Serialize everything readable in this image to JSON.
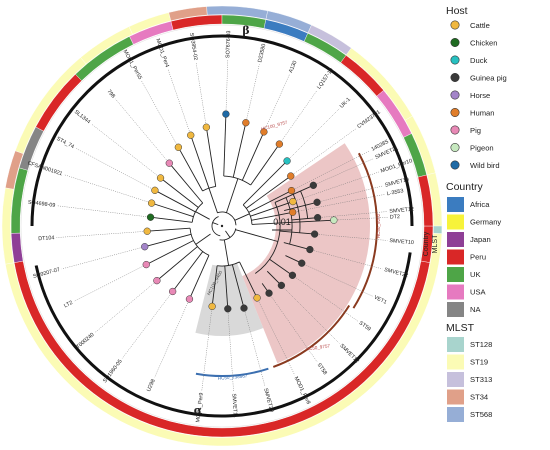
{
  "chart_data": {
    "type": "circular phylogenetic tree",
    "clades": {
      "alpha": "α",
      "beta": "β"
    },
    "scale_bar": "0.01",
    "ring_labels": {
      "country": "Country",
      "mlst": "MLST"
    },
    "legend": {
      "host": {
        "title": "Host",
        "items": [
          {
            "label": "Cattle",
            "color": "#f0b840"
          },
          {
            "label": "Chicken",
            "color": "#1f6b21"
          },
          {
            "label": "Duck",
            "color": "#27c0c0"
          },
          {
            "label": "Guinea pig",
            "color": "#3a3a3a"
          },
          {
            "label": "Horse",
            "color": "#a384c8"
          },
          {
            "label": "Human",
            "color": "#e07d2a"
          },
          {
            "label": "Pig",
            "color": "#e889b6"
          },
          {
            "label": "Pigeon",
            "color": "#c6e8bf"
          },
          {
            "label": "Wild bird",
            "color": "#1f6aa5"
          }
        ]
      },
      "country": {
        "title": "Country",
        "items": [
          {
            "label": "Africa",
            "color": "#3b7cc0"
          },
          {
            "label": "Germany",
            "color": "#f7f33a"
          },
          {
            "label": "Japan",
            "color": "#8f3f96"
          },
          {
            "label": "Peru",
            "color": "#d92727"
          },
          {
            "label": "UK",
            "color": "#4ea547"
          },
          {
            "label": "USA",
            "color": "#e67ac0"
          },
          {
            "label": "NA",
            "color": "#858585"
          }
        ]
      },
      "mlst": {
        "title": "MLST",
        "items": [
          {
            "label": "ST128",
            "color": "#a8d4cd"
          },
          {
            "label": "ST19",
            "color": "#fbfbb5"
          },
          {
            "label": "ST313",
            "color": "#c6c0dc"
          },
          {
            "label": "ST34",
            "color": "#e0a089"
          },
          {
            "label": "ST568",
            "color": "#96aed6"
          }
        ]
      }
    },
    "highlights": [
      {
        "label": "HC100_9757",
        "color": "#b84a4a"
      },
      {
        "label": "HC100_9460",
        "color": "#444444"
      },
      {
        "label": "HC50_9757",
        "color": "#b84a4a"
      },
      {
        "label": "HC50_9202",
        "color": "#b84a4a"
      },
      {
        "label": "HC50_238667",
        "color": "#3b6fb0"
      }
    ],
    "leaves": [
      {
        "label": "SMVET21",
        "host": "Guinea pig",
        "angle": -24,
        "tipr": 100
      },
      {
        "label": "SMVET19",
        "host": "Guinea pig",
        "angle": -14,
        "tipr": 98
      },
      {
        "label": "SMVET12",
        "host": "Guinea pig",
        "angle": -5,
        "tipr": 96
      },
      {
        "label": "SMVET10",
        "host": "Guinea pig",
        "angle": 5,
        "tipr": 93
      },
      {
        "label": "SMVET22",
        "host": "Guinea pig",
        "angle": 15,
        "tipr": 91
      },
      {
        "label": "VET1",
        "host": "Guinea pig",
        "angle": 25,
        "tipr": 88
      },
      {
        "label": "ST59",
        "host": "Guinea pig",
        "angle": 35,
        "tipr": 86
      },
      {
        "label": "SMVET12",
        "host": "Guinea pig",
        "angle": 45,
        "tipr": 84
      },
      {
        "label": "ST58",
        "host": "Guinea pig",
        "angle": 55,
        "tipr": 82
      },
      {
        "label": "MOD1_Per8",
        "host": "Cattle",
        "angle": 64,
        "tipr": 80
      },
      {
        "label": "SMVET20",
        "host": "Guinea pig",
        "angle": 75,
        "tipr": 85
      },
      {
        "label": "SMVET11",
        "host": "Guinea pig",
        "angle": 86,
        "tipr": 83
      },
      {
        "label": "MOD1_Per9",
        "host": "Cattle",
        "angle": 97,
        "tipr": 81
      },
      {
        "label": "U298",
        "host": "Pig",
        "angle": 114,
        "tipr": 80
      },
      {
        "label": "SO1960-05",
        "host": "Pig",
        "angle": 127,
        "tipr": 82
      },
      {
        "label": "T000240",
        "host": "Pig",
        "angle": 140,
        "tipr": 85
      },
      {
        "label": "LT2",
        "host": "Pig",
        "angle": 153,
        "tipr": 85
      },
      {
        "label": "SO9207-07",
        "host": "Horse",
        "angle": 165,
        "tipr": 80
      },
      {
        "label": "DT104",
        "host": "Cattle",
        "angle": 176,
        "tipr": 75
      },
      {
        "label": "SO4698-09",
        "host": "Chicken",
        "angle": 187,
        "tipr": 72
      },
      {
        "label": "CFSAN001921",
        "host": "Cattle",
        "angle": 198,
        "tipr": 74
      },
      {
        "label": "ST4_74",
        "host": "Cattle",
        "angle": 208,
        "tipr": 76
      },
      {
        "label": "SL1344",
        "host": "Cattle",
        "angle": 218,
        "tipr": 78
      },
      {
        "label": "798",
        "host": "Pig",
        "angle": 230,
        "tipr": 82
      },
      {
        "label": "MOD1_Per55",
        "host": "Cattle",
        "angle": 241,
        "tipr": 90
      },
      {
        "label": "MOD1_Per4",
        "host": "Cattle",
        "angle": 251,
        "tipr": 96
      },
      {
        "label": "SO3954-02",
        "host": "Cattle",
        "angle": 261,
        "tipr": 100
      },
      {
        "label": "SO7676-03",
        "host": "Wild bird",
        "angle": 272,
        "tipr": 112
      },
      {
        "label": "D23580",
        "host": "Human",
        "angle": 283,
        "tipr": 106
      },
      {
        "label": "A130",
        "host": "Human",
        "angle": 294,
        "tipr": 103
      },
      {
        "label": "LQ157-10",
        "host": "Human",
        "angle": 305,
        "tipr": 100
      },
      {
        "label": "UK-1",
        "host": "Duck",
        "angle": 315,
        "tipr": 92
      },
      {
        "label": "CVM23701",
        "host": "Human",
        "angle": 324,
        "tipr": 85
      },
      {
        "label": "14028S",
        "host": "Human",
        "angle": 333,
        "tipr": 78
      },
      {
        "label": "MOD1_Per10",
        "host": "Cattle",
        "angle": 341,
        "tipr": 75
      },
      {
        "label": "L-3553",
        "host": "Human",
        "angle": 349,
        "tipr": 72
      },
      {
        "label": "DT2",
        "host": "Pigeon",
        "angle": 357,
        "tipr": 112
      }
    ]
  }
}
